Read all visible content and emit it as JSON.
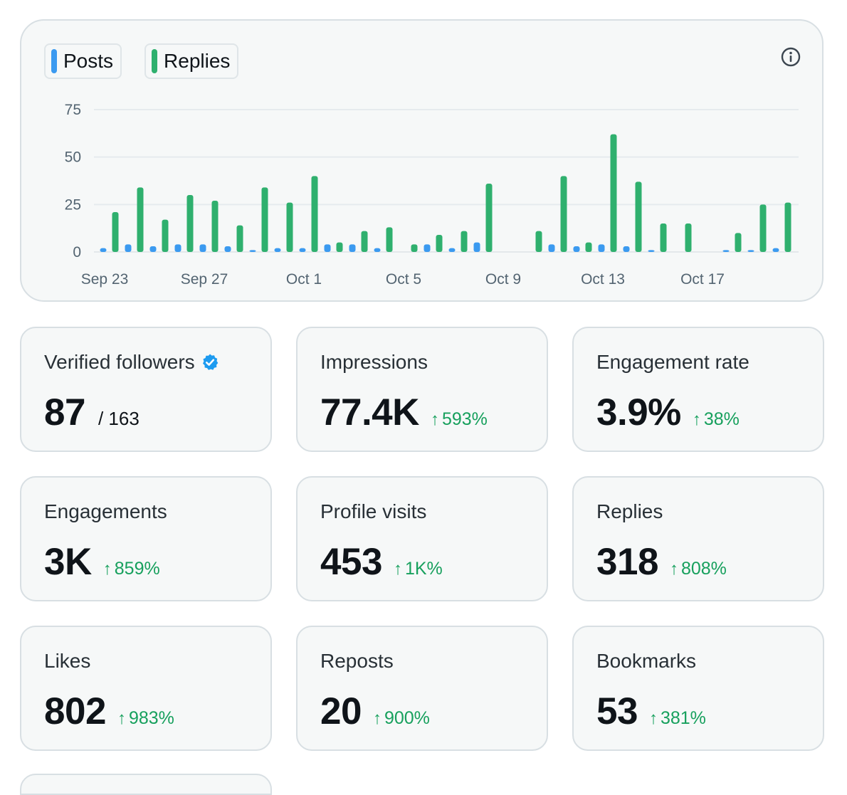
{
  "colors": {
    "posts": "#3b9af0",
    "replies": "#2fb06e",
    "positive": "#17a05d",
    "verified": "#1d9bf0"
  },
  "legend": {
    "posts_label": "Posts",
    "replies_label": "Replies"
  },
  "info_icon": "info-icon",
  "chart_data": {
    "type": "bar",
    "title": "",
    "xlabel": "",
    "ylabel": "",
    "ylim": [
      0,
      75
    ],
    "yticks": [
      0,
      25,
      50,
      75
    ],
    "x_tick_labels": [
      {
        "day": 0,
        "label": "Sep 23"
      },
      {
        "day": 4,
        "label": "Sep 27"
      },
      {
        "day": 8,
        "label": "Oct 1"
      },
      {
        "day": 12,
        "label": "Oct 5"
      },
      {
        "day": 16,
        "label": "Oct 9"
      },
      {
        "day": 20,
        "label": "Oct 13"
      },
      {
        "day": 24,
        "label": "Oct 17"
      }
    ],
    "series": [
      {
        "name": "Posts",
        "values": [
          2,
          4,
          3,
          4,
          4,
          3,
          1,
          2,
          2,
          4,
          4,
          2,
          0,
          4,
          2,
          5,
          0,
          0,
          4,
          3,
          4,
          3,
          1,
          0,
          0,
          1,
          1,
          2
        ]
      },
      {
        "name": "Replies",
        "values": [
          21,
          34,
          17,
          30,
          27,
          14,
          34,
          26,
          40,
          5,
          11,
          13,
          4,
          9,
          11,
          36,
          0,
          11,
          40,
          5,
          62,
          37,
          15,
          15,
          0,
          10,
          25,
          26
        ]
      }
    ]
  },
  "cards": [
    {
      "label": "Verified followers",
      "value": "87",
      "total": "/ 163",
      "change": ""
    },
    {
      "label": "Impressions",
      "value": "77.4K",
      "total": "",
      "change": "593%"
    },
    {
      "label": "Engagement rate",
      "value": "3.9%",
      "total": "",
      "change": "38%"
    },
    {
      "label": "Engagements",
      "value": "3K",
      "total": "",
      "change": "859%"
    },
    {
      "label": "Profile visits",
      "value": "453",
      "total": "",
      "change": "1K%"
    },
    {
      "label": "Replies",
      "value": "318",
      "total": "",
      "change": "808%"
    },
    {
      "label": "Likes",
      "value": "802",
      "total": "",
      "change": "983%"
    },
    {
      "label": "Reposts",
      "value": "20",
      "total": "",
      "change": "900%"
    },
    {
      "label": "Bookmarks",
      "value": "53",
      "total": "",
      "change": "381%"
    }
  ]
}
